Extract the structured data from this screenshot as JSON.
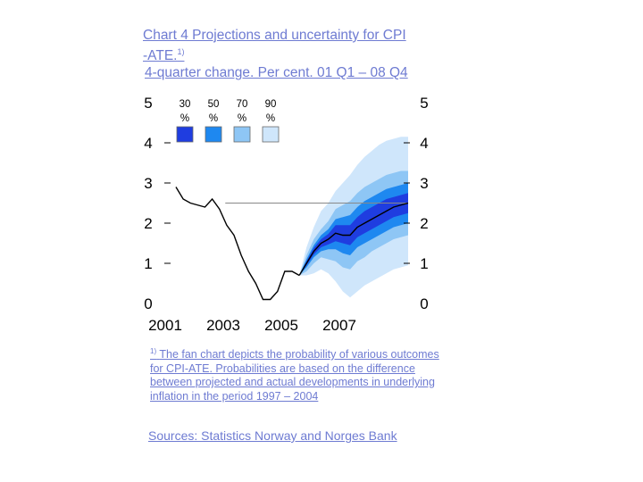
{
  "title": {
    "line1": "Chart 4 Projections and uncertainty for CPI",
    "line2": "-ATE.",
    "line2_sup": "1)",
    "line3": "4-quarter change. Per cent. 01 Q1 – 08 Q4"
  },
  "footnote": {
    "marker": "1)",
    "text": "The fan chart depicts the probability of various outcomes for CPI-ATE.  Probabilities are based on the difference between projected and actual developments in underlying inflation in the period 1997 – 2004"
  },
  "sources": "Sources: Statistics Norway and Norges Bank",
  "chart_data": {
    "type": "area",
    "xlim": [
      2001,
      2009
    ],
    "ylim": [
      0,
      5
    ],
    "x_ticks": [
      "2001",
      "2003",
      "2005",
      "2007"
    ],
    "y_ticks_left": [
      "0",
      "1",
      "2",
      "3",
      "4",
      "5"
    ],
    "y_ticks_right": [
      "0",
      "1",
      "2",
      "3",
      "4",
      "5"
    ],
    "grid": false,
    "legend": [
      {
        "label": "30 %",
        "color": "#1f3de0"
      },
      {
        "label": "50 %",
        "color": "#1e88f0"
      },
      {
        "label": "70 %",
        "color": "#8ec6f5"
      },
      {
        "label": "90 %",
        "color": "#cfe6fb"
      }
    ],
    "reference_line": {
      "y": 2.5,
      "x_start": 2002.7,
      "x_end": 2009,
      "color": "#888888"
    },
    "history": {
      "x": [
        2001.0,
        2001.25,
        2001.5,
        2001.75,
        2002.0,
        2002.25,
        2002.5,
        2002.75,
        2003.0,
        2003.25,
        2003.5,
        2003.75,
        2004.0,
        2004.25,
        2004.5,
        2004.75,
        2005.0,
        2005.25
      ],
      "y": [
        2.9,
        2.6,
        2.5,
        2.45,
        2.4,
        2.6,
        2.35,
        1.95,
        1.7,
        1.2,
        0.8,
        0.5,
        0.1,
        0.1,
        0.3,
        0.8,
        0.8,
        0.7
      ]
    },
    "projection": {
      "x": [
        2005.25,
        2005.5,
        2005.75,
        2006.0,
        2006.25,
        2006.5,
        2006.75,
        2007.0,
        2007.25,
        2007.5,
        2007.75,
        2008.0,
        2008.25,
        2008.5,
        2008.75,
        2009.0
      ],
      "y": [
        0.7,
        1.0,
        1.3,
        1.5,
        1.6,
        1.75,
        1.7,
        1.7,
        1.9,
        2.0,
        2.1,
        2.2,
        2.3,
        2.4,
        2.45,
        2.5
      ]
    },
    "bands": {
      "x": [
        2005.25,
        2005.5,
        2005.75,
        2006.0,
        2006.25,
        2006.5,
        2006.75,
        2007.0,
        2007.25,
        2007.5,
        2007.75,
        2008.0,
        2008.25,
        2008.5,
        2008.75,
        2009.0
      ],
      "p90_low": [
        0.7,
        0.7,
        0.75,
        0.85,
        0.75,
        0.55,
        0.3,
        0.15,
        0.3,
        0.45,
        0.55,
        0.65,
        0.75,
        0.85,
        0.9,
        0.95
      ],
      "p90_high": [
        0.7,
        1.4,
        1.9,
        2.3,
        2.5,
        2.8,
        3.0,
        3.2,
        3.45,
        3.65,
        3.8,
        3.95,
        4.05,
        4.1,
        4.15,
        4.15
      ],
      "p70_low": [
        0.7,
        0.8,
        1.0,
        1.15,
        1.1,
        1.05,
        0.9,
        0.85,
        1.05,
        1.15,
        1.3,
        1.4,
        1.5,
        1.6,
        1.65,
        1.7
      ],
      "p70_high": [
        0.7,
        1.2,
        1.6,
        1.85,
        2.05,
        2.35,
        2.45,
        2.55,
        2.75,
        2.9,
        3.0,
        3.1,
        3.2,
        3.25,
        3.3,
        3.3
      ],
      "p50_low": [
        0.7,
        0.9,
        1.15,
        1.3,
        1.35,
        1.35,
        1.25,
        1.2,
        1.4,
        1.5,
        1.6,
        1.7,
        1.8,
        1.9,
        1.95,
        2.0
      ],
      "p50_high": [
        0.7,
        1.1,
        1.45,
        1.7,
        1.85,
        2.1,
        2.15,
        2.2,
        2.4,
        2.55,
        2.65,
        2.75,
        2.85,
        2.9,
        2.95,
        3.0
      ],
      "p30_low": [
        0.7,
        0.95,
        1.22,
        1.4,
        1.47,
        1.55,
        1.5,
        1.45,
        1.65,
        1.75,
        1.85,
        1.95,
        2.05,
        2.15,
        2.2,
        2.25
      ],
      "p30_high": [
        0.7,
        1.05,
        1.38,
        1.6,
        1.73,
        1.95,
        1.95,
        1.95,
        2.15,
        2.3,
        2.4,
        2.5,
        2.6,
        2.65,
        2.7,
        2.75
      ]
    }
  }
}
